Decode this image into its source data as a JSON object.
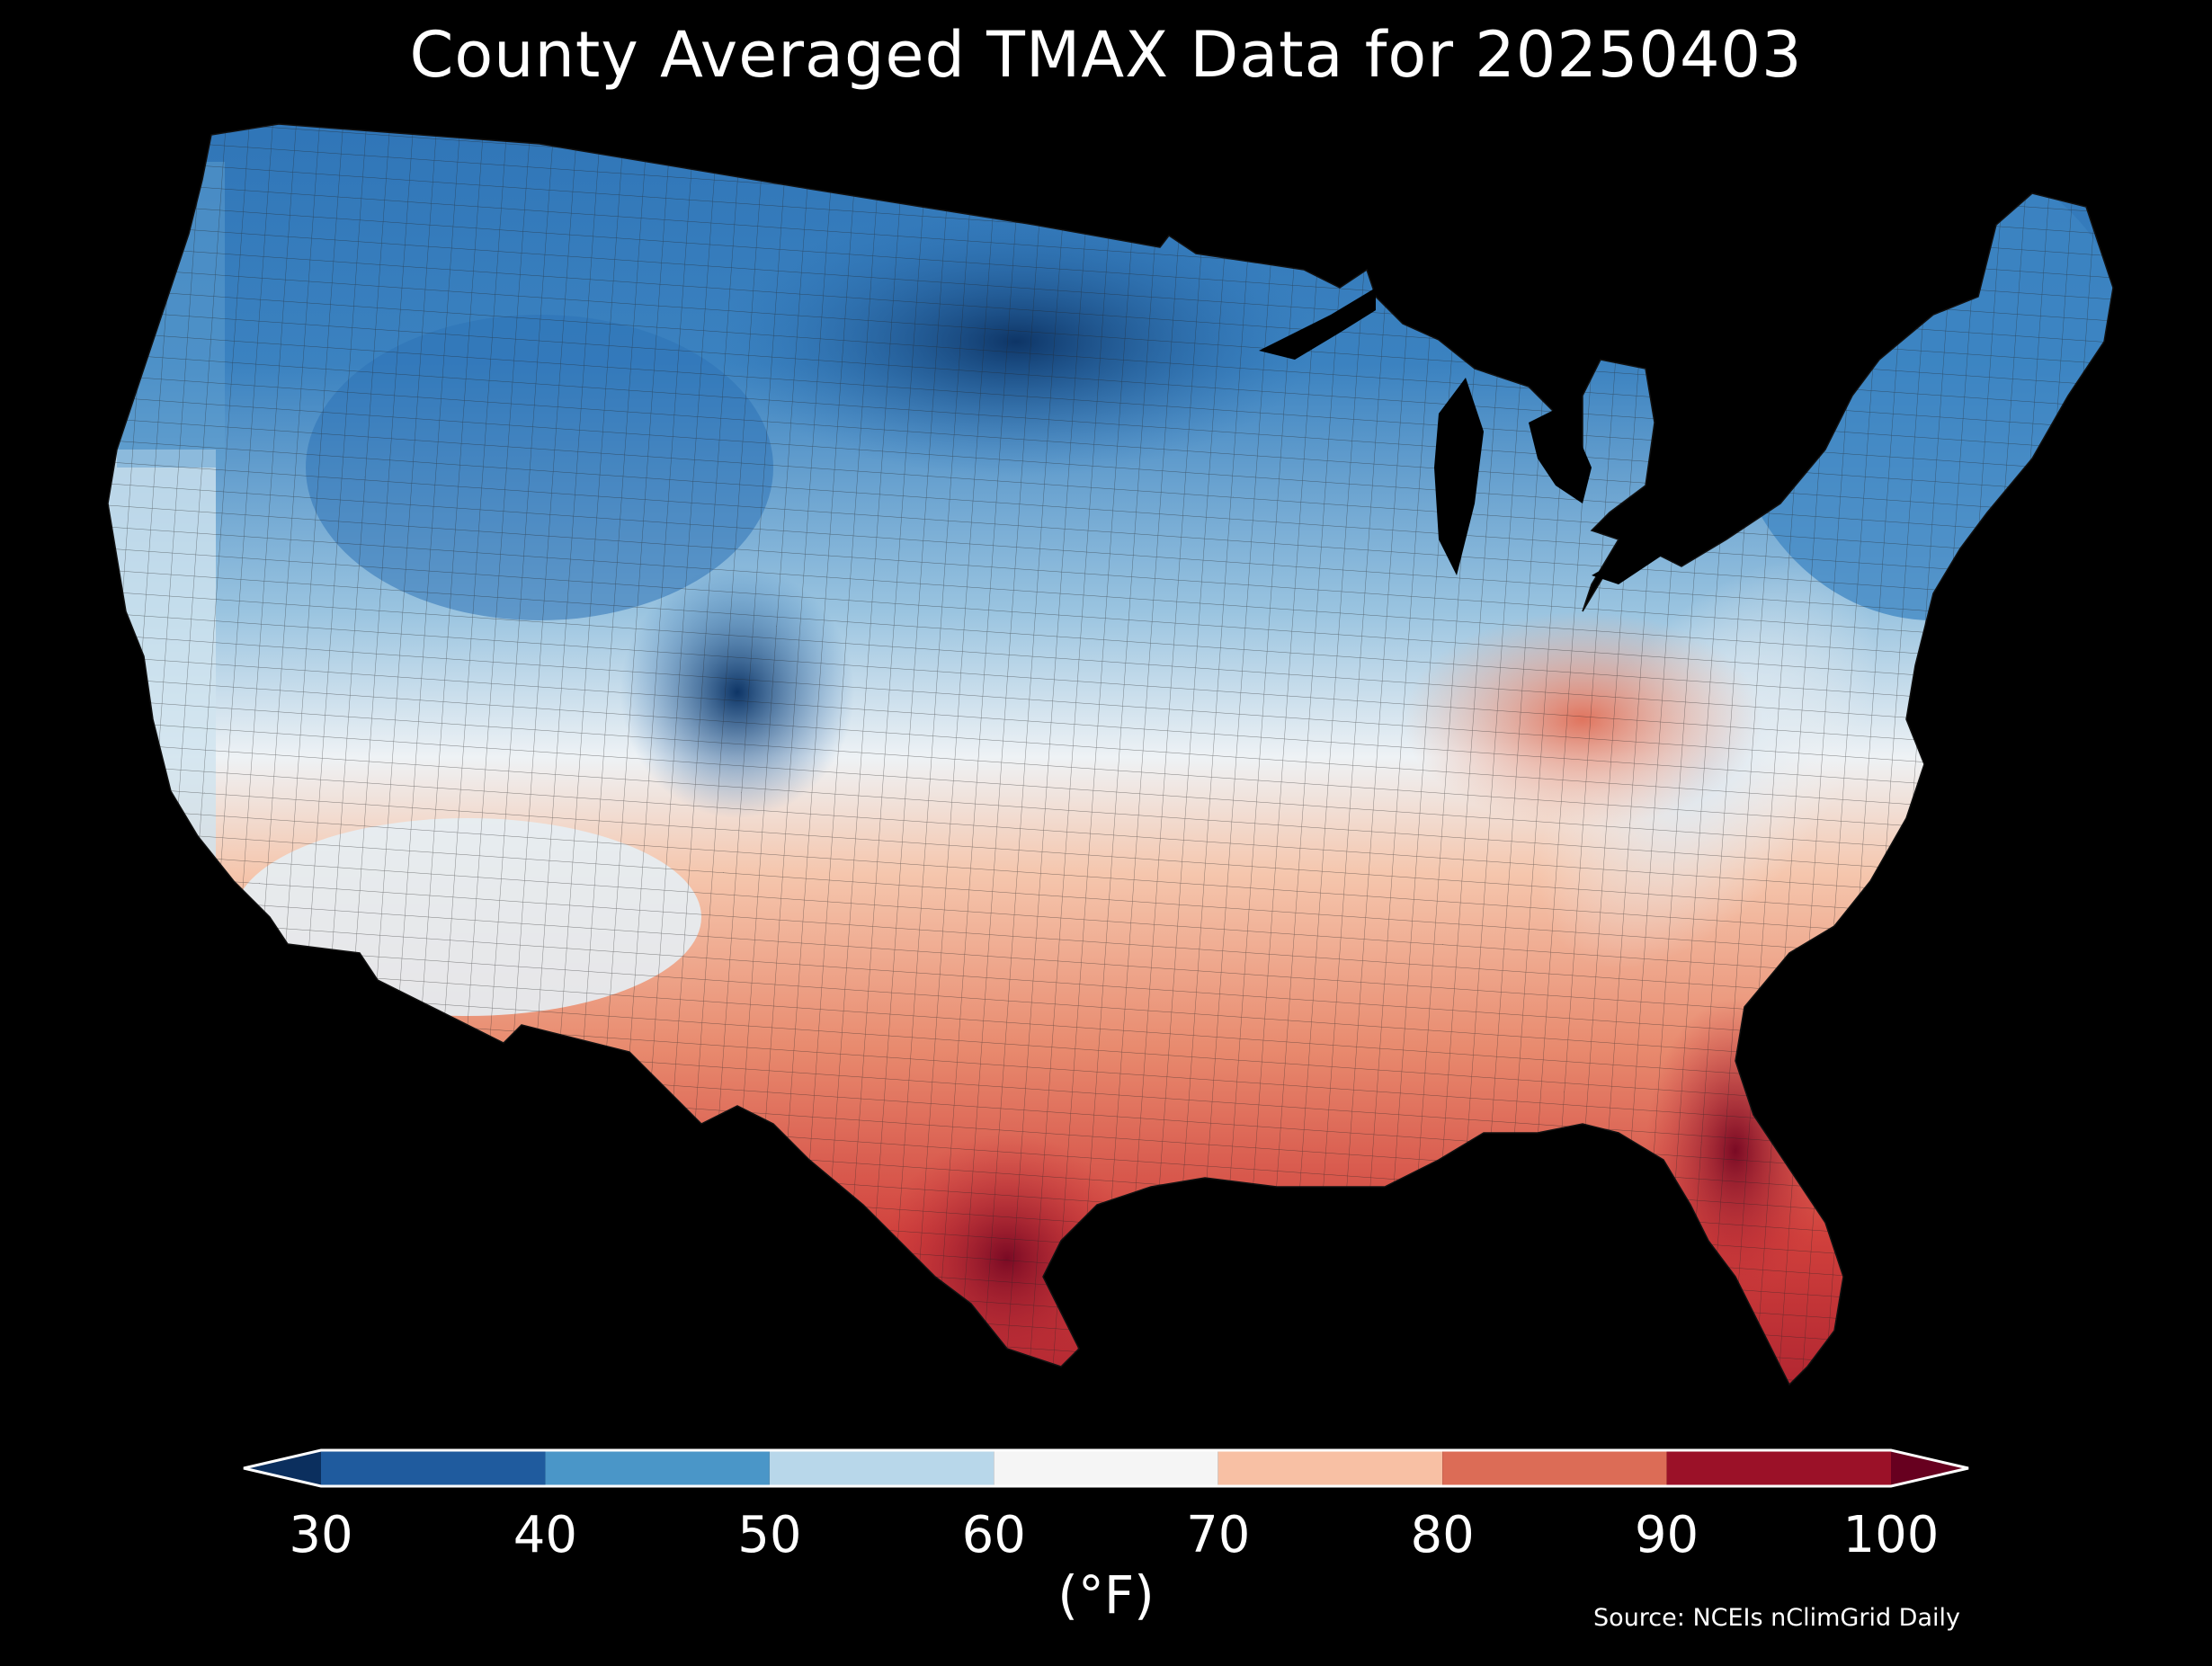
{
  "title": "County Averaged TMAX Data for 20250403",
  "colorbar": {
    "unit_label": "(°F)",
    "ticks": [
      "30",
      "40",
      "50",
      "60",
      "70",
      "80",
      "90",
      "100"
    ],
    "bins": [
      {
        "range": [
          30,
          40
        ],
        "color": "#1f5b9e"
      },
      {
        "range": [
          40,
          50
        ],
        "color": "#4a96c8"
      },
      {
        "range": [
          50,
          60
        ],
        "color": "#b8d7ea"
      },
      {
        "range": [
          60,
          70
        ],
        "color": "#f5f5f5"
      },
      {
        "range": [
          70,
          80
        ],
        "color": "#f8c0a4"
      },
      {
        "range": [
          80,
          90
        ],
        "color": "#dc6c56"
      },
      {
        "range": [
          90,
          100
        ],
        "color": "#9b1128"
      }
    ],
    "under_color": "#0b2f5e",
    "over_color": "#67001f",
    "extend": "both"
  },
  "source": "Source: NCEIs nClimGrid Daily",
  "map": {
    "projection": "Lambert Conformal (CONUS)",
    "region": "Contiguous United States counties",
    "background_color": "#000000",
    "land_gradient": "cold (30s °F) north-central and Rockies, warm (90s °F) south Texas and Florida"
  }
}
